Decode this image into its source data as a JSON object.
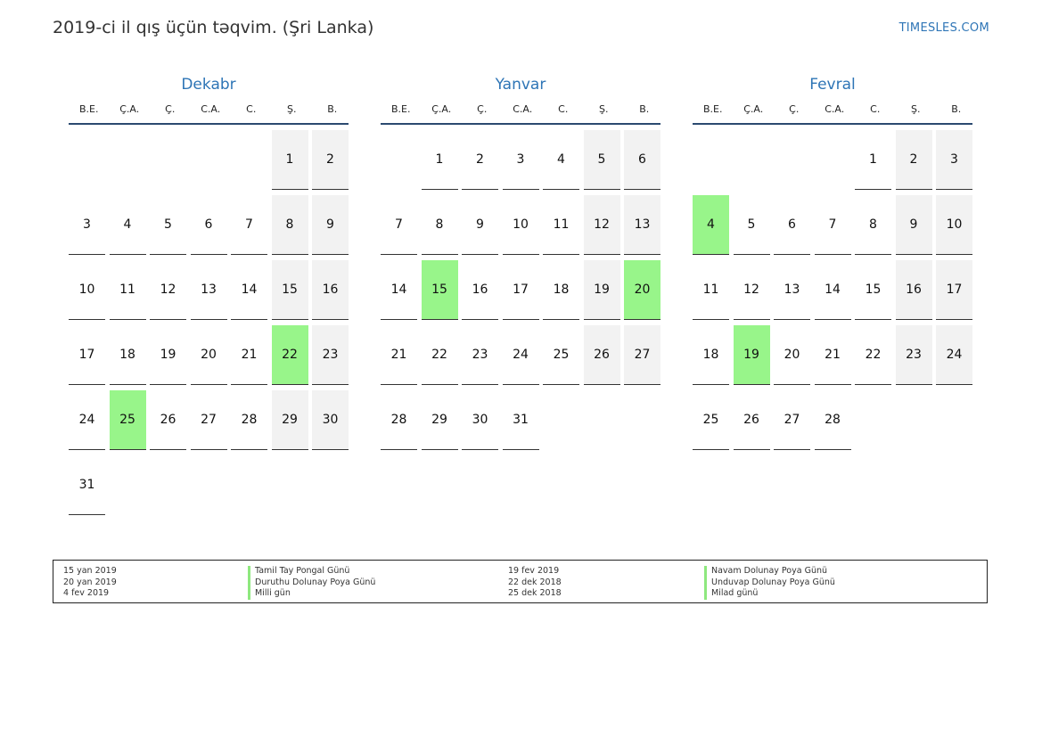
{
  "header": {
    "title": "2019-ci il qış üçün təqvim. (Şri Lanka)",
    "site": "TIMESLES.COM"
  },
  "weekdays": [
    "B.E.",
    "Ç.A.",
    "Ç.",
    "C.A.",
    "C.",
    "Ş.",
    "B."
  ],
  "months": [
    {
      "name": "Dekabr",
      "start_offset": 5,
      "days": 31,
      "holidays": [
        22,
        25
      ]
    },
    {
      "name": "Yanvar",
      "start_offset": 1,
      "days": 31,
      "holidays": [
        15,
        20
      ]
    },
    {
      "name": "Fevral",
      "start_offset": 4,
      "days": 28,
      "holidays": [
        4,
        19
      ]
    }
  ],
  "legend": {
    "left": [
      {
        "date": "15 yan 2019",
        "name": "Tamil Tay Pongal Günü"
      },
      {
        "date": "20 yan 2019",
        "name": "Duruthu Dolunay Poya Günü"
      },
      {
        "date": "4 fev 2019",
        "name": "Milli gün"
      }
    ],
    "right": [
      {
        "date": "19 fev 2019",
        "name": "Navam Dolunay Poya Günü"
      },
      {
        "date": "22 dek 2018",
        "name": "Unduvap Dolunay Poya Günü"
      },
      {
        "date": "25 dek 2018",
        "name": "Milad günü"
      }
    ]
  }
}
